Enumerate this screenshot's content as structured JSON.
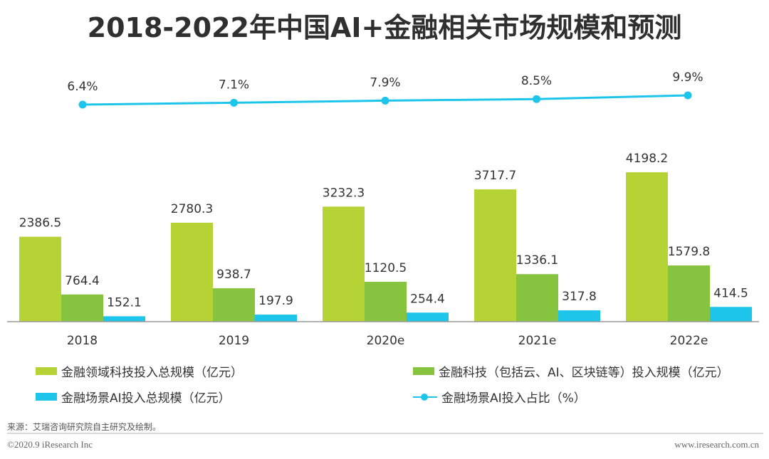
{
  "chart_data": {
    "type": "bar",
    "title": "2018-2022年中国AI+金融相关市场规模和预测",
    "categories": [
      "2018",
      "2019",
      "2020e",
      "2021e",
      "2022e"
    ],
    "series": [
      {
        "name": "金融领域科技投入总规模（亿元）",
        "type": "bar",
        "color": "#B5D334",
        "values": [
          2386.5,
          2780.3,
          3232.3,
          3717.7,
          4198.2
        ],
        "labels": [
          "2386.5",
          "2780.3",
          "3232.3",
          "3717.7",
          "4198.2"
        ]
      },
      {
        "name": "金融科技（包括云、AI、区块链等）投入规模（亿元）",
        "type": "bar",
        "color": "#86C440",
        "values": [
          764.4,
          938.7,
          1120.5,
          1336.1,
          1579.8
        ],
        "labels": [
          "764.4",
          "938.7",
          "1120.5",
          "1336.1",
          "1579.8"
        ]
      },
      {
        "name": "金融场景AI投入总规模（亿元）",
        "type": "bar",
        "color": "#1EC5EA",
        "values": [
          152.1,
          197.9,
          254.4,
          317.8,
          414.5
        ],
        "labels": [
          "152.1",
          "197.9",
          "254.4",
          "317.8",
          "414.5"
        ]
      },
      {
        "name": "金融场景AI投入占比（%）",
        "type": "line",
        "color": "#1EC5EA",
        "values": [
          6.4,
          7.1,
          7.9,
          8.5,
          9.9
        ],
        "labels": [
          "6.4%",
          "7.1%",
          "7.9%",
          "8.5%",
          "9.9%"
        ]
      }
    ],
    "ylim": [
      0,
      4500
    ],
    "line_ylim": [
      0,
      10
    ],
    "xlabel": "",
    "ylabel": "",
    "grid": false,
    "legend_position": "bottom"
  },
  "footer": {
    "source": "来源：艾瑞咨询研究院自主研究及绘制。",
    "copyright": "©2020.9 iResearch Inc",
    "website": "www.iresearch.com.cn"
  }
}
